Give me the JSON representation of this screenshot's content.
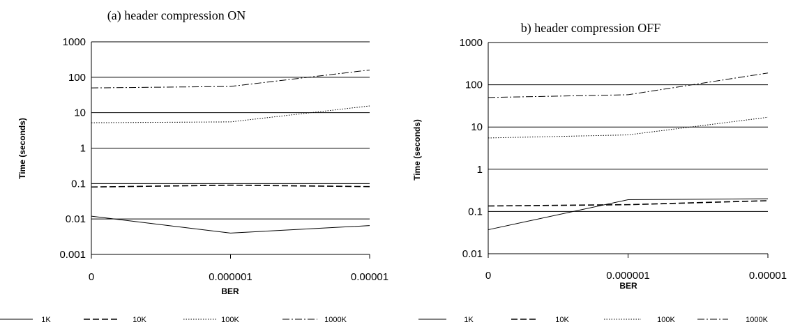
{
  "chart_data": [
    {
      "type": "line",
      "title": "(a) header compression ON",
      "xlabel": "BER",
      "ylabel": "Time (seconds)",
      "yscale": "log",
      "ylim": [
        0.001,
        1000
      ],
      "yticks": [
        "1000",
        "100",
        "10",
        "1",
        "0.1",
        "0.01",
        "0.001"
      ],
      "categories": [
        "0",
        "0.000001",
        "0.00001"
      ],
      "grid": true,
      "legend_position": "bottom",
      "series": [
        {
          "name": "1K",
          "values": [
            0.012,
            0.004,
            0.0065
          ],
          "dash": "solid"
        },
        {
          "name": "10K",
          "values": [
            0.08,
            0.09,
            0.082
          ],
          "dash": "dashed"
        },
        {
          "name": "100K",
          "values": [
            5.2,
            5.5,
            15.5
          ],
          "dash": "dotted"
        },
        {
          "name": "1000K",
          "values": [
            50,
            55,
            160
          ],
          "dash": "dashdot"
        }
      ]
    },
    {
      "type": "line",
      "title": "b) header compression OFF",
      "xlabel": "BER",
      "ylabel": "Time (seconds)",
      "yscale": "log",
      "ylim": [
        0.01,
        1000
      ],
      "yticks": [
        "1000",
        "100",
        "10",
        "1",
        "0.1",
        "0.01"
      ],
      "categories": [
        "0",
        "0.000001",
        "0.00001"
      ],
      "grid": true,
      "legend_position": "bottom",
      "series": [
        {
          "name": "1K",
          "values": [
            0.037,
            0.19,
            0.2
          ],
          "dash": "solid"
        },
        {
          "name": "10K",
          "values": [
            0.135,
            0.145,
            0.18
          ],
          "dash": "dashed"
        },
        {
          "name": "100K",
          "values": [
            5.5,
            6.5,
            17
          ],
          "dash": "dotted"
        },
        {
          "name": "1000K",
          "values": [
            50,
            58,
            190
          ],
          "dash": "dashdot"
        }
      ]
    }
  ]
}
